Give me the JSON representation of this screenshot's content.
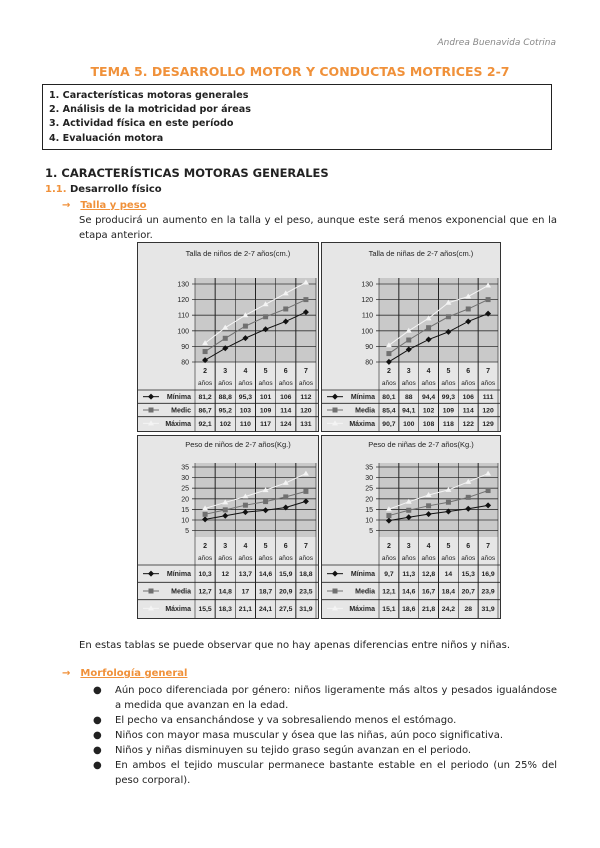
{
  "header": {
    "author": "Andrea Buenavida Cotrina"
  },
  "title": "TEMA 5. DESARROLLO MOTOR Y CONDUCTAS MOTRICES 2-7",
  "toc": [
    "1. Características motoras generales",
    "2. Análisis de la motricidad por áreas",
    "3. Actividad física en este período",
    "4. Evaluación motora"
  ],
  "section1": {
    "heading": "1. CARACTERÍSTICAS MOTORAS GENERALES",
    "sub_num": "1.1.",
    "sub_title": "Desarrollo físico",
    "arrow": "→",
    "talla": {
      "label": "Talla y peso",
      "text": "Se producirá un aumento en la talla y el peso, aunque este será menos exponencial que en la etapa anterior."
    },
    "after_charts": "En estas tablas se puede observar que no hay apenas diferencias entre niños y niñas.",
    "morfologia": {
      "label": "Morfología general",
      "bullet": "●",
      "items": [
        "Aún poco diferenciada por género: niños ligeramente más altos y pesados igualándose a medida que avanzan en la edad.",
        "El pecho va ensanchándose y va sobresaliendo menos el estómago.",
        "Niños con mayor masa muscular y ósea que las niñas, aún poco significativa.",
        "Niños y niñas disminuyen su tejido graso según avanzan en el periodo.",
        "En ambos el tejido muscular permanece bastante estable en el periodo (un 25% del peso corporal)."
      ]
    }
  },
  "chart_data": [
    {
      "type": "line",
      "title": "Talla de niños de 2-7 años(cm.)",
      "categories": [
        [
          "2",
          "años"
        ],
        [
          "3",
          "años"
        ],
        [
          "4",
          "años"
        ],
        [
          "5",
          "años"
        ],
        [
          "6",
          "años"
        ],
        [
          "7",
          "años"
        ]
      ],
      "yticks": [
        80,
        90,
        100,
        110,
        120,
        130
      ],
      "ylim": [
        80,
        130
      ],
      "grid": true,
      "series": [
        {
          "name": "Mínima",
          "marker": "diamond",
          "color": "#111111",
          "values": [
            81.2,
            88.8,
            95.3,
            101,
            106,
            112
          ],
          "labels": [
            "81,2",
            "88,8",
            "95,3",
            "101",
            "106",
            "112"
          ]
        },
        {
          "name": "Medic",
          "marker": "square",
          "color": "#707070",
          "values": [
            86.7,
            95.2,
            103,
            109,
            114,
            120
          ],
          "labels": [
            "86,7",
            "95,2",
            "103",
            "109",
            "114",
            "120"
          ]
        },
        {
          "name": "Máxima",
          "marker": "triangle",
          "color": "#f4f4f4",
          "values": [
            92.1,
            102,
            110,
            117,
            124,
            131
          ],
          "labels": [
            "92,1",
            "102",
            "110",
            "117",
            "124",
            "131"
          ]
        }
      ]
    },
    {
      "type": "line",
      "title": "Talla de niñas de 2-7 años(cm.)",
      "categories": [
        [
          "2",
          "años"
        ],
        [
          "3",
          "años"
        ],
        [
          "4",
          "años"
        ],
        [
          "5",
          "años"
        ],
        [
          "6",
          "años"
        ],
        [
          "7",
          "años"
        ]
      ],
      "yticks": [
        80,
        90,
        100,
        110,
        120,
        130
      ],
      "ylim": [
        80,
        130
      ],
      "grid": true,
      "series": [
        {
          "name": "Mínima",
          "marker": "diamond",
          "color": "#111111",
          "values": [
            80.1,
            88,
            94.4,
            99.3,
            106,
            111
          ],
          "labels": [
            "80,1",
            "88",
            "94,4",
            "99,3",
            "106",
            "111"
          ]
        },
        {
          "name": "Media",
          "marker": "square",
          "color": "#707070",
          "values": [
            85.4,
            94.1,
            102,
            109,
            114,
            120
          ],
          "labels": [
            "85,4",
            "94,1",
            "102",
            "109",
            "114",
            "120"
          ]
        },
        {
          "name": "Máxima",
          "marker": "triangle",
          "color": "#f4f4f4",
          "values": [
            90.7,
            100,
            108,
            118,
            122,
            129
          ],
          "labels": [
            "90,7",
            "100",
            "108",
            "118",
            "122",
            "129"
          ]
        }
      ]
    },
    {
      "type": "line",
      "title": "Peso de niños de 2-7 años(Kg.)",
      "categories": [
        [
          "2",
          "años"
        ],
        [
          "3",
          "años"
        ],
        [
          "4",
          "años"
        ],
        [
          "5",
          "años"
        ],
        [
          "6",
          "años"
        ],
        [
          "7",
          "años"
        ]
      ],
      "yticks": [
        5,
        10,
        15,
        20,
        25,
        30,
        35
      ],
      "ylim": [
        2,
        35
      ],
      "grid": true,
      "series": [
        {
          "name": "Mínima",
          "marker": "diamond",
          "color": "#111111",
          "values": [
            10.3,
            12,
            13.7,
            14.6,
            15.9,
            18.8
          ],
          "labels": [
            "10,3",
            "12",
            "13,7",
            "14,6",
            "15,9",
            "18,8"
          ]
        },
        {
          "name": "Media",
          "marker": "square",
          "color": "#707070",
          "values": [
            12.7,
            14.8,
            17,
            18.7,
            20.9,
            23.5
          ],
          "labels": [
            "12,7",
            "14,8",
            "17",
            "18,7",
            "20,9",
            "23,5"
          ]
        },
        {
          "name": "Máxima",
          "marker": "triangle",
          "color": "#f4f4f4",
          "values": [
            15.5,
            18.3,
            21.1,
            24.1,
            27.5,
            31.9
          ],
          "labels": [
            "15,5",
            "18,3",
            "21,1",
            "24,1",
            "27,5",
            "31,9"
          ]
        }
      ]
    },
    {
      "type": "line",
      "title": "Peso de niñas de 2-7 años(Kg.)",
      "categories": [
        [
          "2",
          "años"
        ],
        [
          "3",
          "años"
        ],
        [
          "4",
          "años"
        ],
        [
          "5",
          "años"
        ],
        [
          "6",
          "años"
        ],
        [
          "7",
          "años"
        ]
      ],
      "yticks": [
        5,
        10,
        15,
        20,
        25,
        30,
        35
      ],
      "ylim": [
        2,
        35
      ],
      "grid": true,
      "series": [
        {
          "name": "Mínima",
          "marker": "diamond",
          "color": "#111111",
          "values": [
            9.7,
            11.3,
            12.8,
            14,
            15.3,
            16.9
          ],
          "labels": [
            "9,7",
            "11,3",
            "12,8",
            "14",
            "15,3",
            "16,9"
          ]
        },
        {
          "name": "Media",
          "marker": "square",
          "color": "#707070",
          "values": [
            12.1,
            14.6,
            16.7,
            18.4,
            20.7,
            23.9
          ],
          "labels": [
            "12,1",
            "14,6",
            "16,7",
            "18,4",
            "20,7",
            "23,9"
          ]
        },
        {
          "name": "Máxima",
          "marker": "triangle",
          "color": "#f4f4f4",
          "values": [
            15.1,
            18.6,
            21.8,
            24.2,
            28,
            31.9
          ],
          "labels": [
            "15,1",
            "18,6",
            "21,8",
            "24,2",
            "28",
            "31,9"
          ]
        }
      ]
    }
  ]
}
